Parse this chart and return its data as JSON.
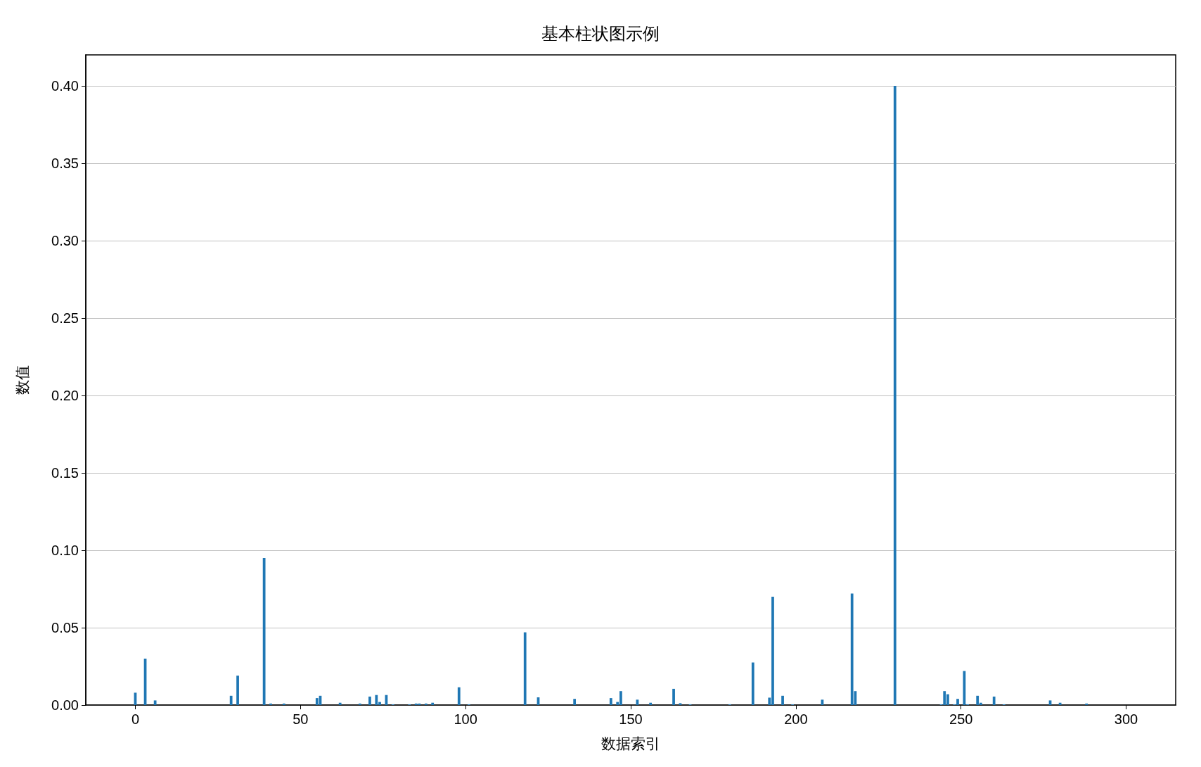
{
  "chart_data": {
    "type": "bar",
    "title": "基本柱状图示例",
    "xlabel": "数据索引",
    "ylabel": "数值",
    "color": "#1f77b4",
    "x": [
      0,
      3,
      6,
      29,
      31,
      39,
      41,
      45,
      55,
      56,
      62,
      68,
      71,
      73,
      74,
      76,
      78,
      83,
      85,
      86,
      88,
      90,
      98,
      101,
      118,
      122,
      133,
      144,
      146,
      147,
      152,
      156,
      163,
      165,
      168,
      180,
      187,
      192,
      193,
      196,
      199,
      208,
      217,
      218,
      230,
      244,
      245,
      246,
      248,
      249,
      251,
      252,
      255,
      256,
      260,
      263,
      277,
      280,
      288
    ],
    "values": [
      0.008,
      0.03,
      0.003,
      0.006,
      0.019,
      0.095,
      0.001,
      0.001,
      0.0045,
      0.006,
      0.0015,
      0.001,
      0.0055,
      0.0065,
      0.002,
      0.0065,
      0.0005,
      0.0005,
      0.001,
      0.001,
      0.001,
      0.0015,
      0.0115,
      0.0005,
      0.047,
      0.005,
      0.004,
      0.0045,
      0.002,
      0.009,
      0.0035,
      0.0015,
      0.0105,
      0.0012,
      0.0005,
      0.0005,
      0.0275,
      0.0048,
      0.07,
      0.006,
      0.0005,
      0.0035,
      0.072,
      0.009,
      0.4,
      0.0005,
      0.009,
      0.007,
      0.0005,
      0.004,
      0.022,
      0.0005,
      0.006,
      0.0015,
      0.0055,
      0.0005,
      0.003,
      0.0015,
      0.001
    ],
    "xlim": [
      -15,
      315
    ],
    "xticks": [
      0,
      50,
      100,
      150,
      200,
      250,
      300
    ],
    "ylim": [
      0,
      0.42
    ],
    "yticks": [
      {
        "value": 0,
        "label": "0.00"
      },
      {
        "value": 0.05,
        "label": "0.05"
      },
      {
        "value": 0.1,
        "label": "0.10"
      },
      {
        "value": 0.15,
        "label": "0.15"
      },
      {
        "value": 0.2,
        "label": "0.20"
      },
      {
        "value": 0.25,
        "label": "0.25"
      },
      {
        "value": 0.3,
        "label": "0.30"
      },
      {
        "value": 0.35,
        "label": "0.35"
      },
      {
        "value": 0.4,
        "label": "0.40"
      }
    ],
    "grid": "y"
  }
}
